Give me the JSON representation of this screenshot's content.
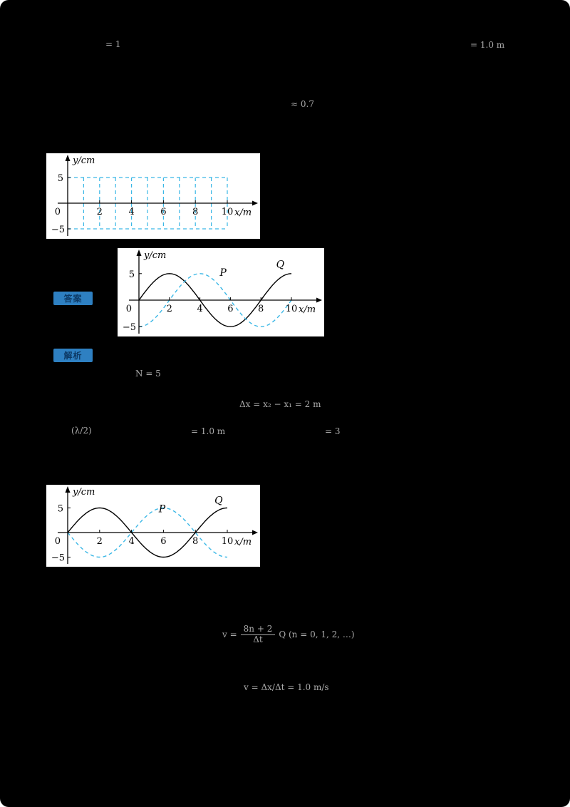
{
  "page": {
    "background": "#000000"
  },
  "tags": [
    {
      "label": "答案"
    },
    {
      "label": "解析"
    }
  ],
  "fragments": [
    {
      "text": "= 1"
    },
    {
      "text": "= 1.0 m"
    },
    {
      "text": "≈ 0.7"
    },
    {
      "text": "N = 5"
    },
    {
      "text": "Δx = x₂ − x₁ = 2 m"
    },
    {
      "text": "(λ/2)"
    },
    {
      "text": "= 1.0 m"
    },
    {
      "text": "= 3"
    },
    {
      "text": "v = Δx/Δt = 1.0 m/s"
    }
  ],
  "formula": {
    "prefix": "v =",
    "numerator": "8n + 2",
    "denominator": "Δt",
    "suffix": "Q (n = 0, 1, 2, …)"
  },
  "chart_data": [
    {
      "type": "line",
      "name": "square-wave-envelope",
      "xlabel": "x/m",
      "ylabel": "y/cm",
      "origin_label": "0",
      "xlim": [
        0,
        10
      ],
      "ylim": [
        -5,
        5
      ],
      "xticks": [
        2,
        4,
        6,
        8,
        10
      ],
      "yticks": [
        "5",
        "−5"
      ],
      "pattern": {
        "description": "dashed rectangular wave grid between +5 and -5",
        "color": "#3ab7e6",
        "h_lines": [
          5,
          -5
        ],
        "v_lines": [
          1,
          2,
          3,
          4,
          5,
          6,
          7,
          8,
          9,
          10
        ]
      },
      "series": []
    },
    {
      "type": "line",
      "name": "waves-P-Q-answer",
      "xlabel": "x/m",
      "ylabel": "y/cm",
      "origin_label": "0",
      "xlim": [
        0,
        10
      ],
      "ylim": [
        -5,
        5
      ],
      "xticks": [
        2,
        4,
        6,
        8,
        10
      ],
      "yticks": [
        "5",
        "−5"
      ],
      "series": [
        {
          "name": "Q",
          "style": "solid",
          "color": "#000000",
          "amplitude": 5,
          "wavelength": 8,
          "x_shift": 0,
          "label_pos": [
            9.0,
            6.1
          ]
        },
        {
          "name": "P",
          "style": "dashed",
          "color": "#3ab7e6",
          "amplitude": 5,
          "wavelength": 8,
          "x_shift": 2,
          "label_pos": [
            5.3,
            4.6
          ]
        }
      ]
    },
    {
      "type": "line",
      "name": "waves-P-Q-solution",
      "xlabel": "x/m",
      "ylabel": "y/cm",
      "origin_label": "0",
      "xlim": [
        0,
        10
      ],
      "ylim": [
        -5,
        5
      ],
      "xticks": [
        2,
        4,
        6,
        8,
        10
      ],
      "yticks": [
        "5",
        "−5"
      ],
      "series": [
        {
          "name": "Q",
          "style": "solid",
          "color": "#000000",
          "amplitude": 5,
          "wavelength": 8,
          "x_shift": 0,
          "label_pos": [
            9.2,
            5.9
          ]
        },
        {
          "name": "P",
          "style": "dashed",
          "color": "#3ab7e6",
          "amplitude": 5,
          "wavelength": 8,
          "x_shift": 4,
          "label_pos": [
            5.7,
            4.1
          ]
        }
      ]
    }
  ]
}
